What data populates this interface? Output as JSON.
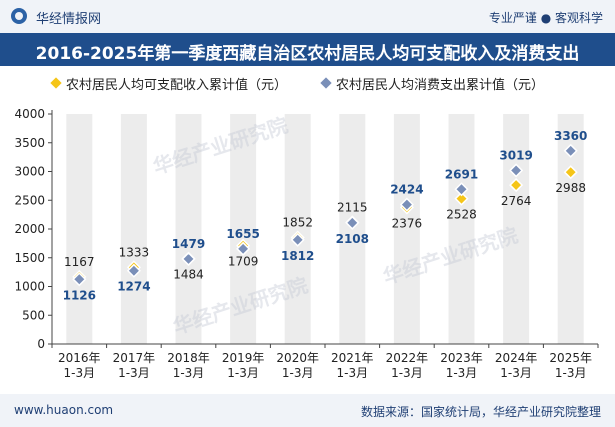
{
  "header": {
    "brand": "华经情报网",
    "tagline": "专业严谨 ● 客观科学",
    "title": "2016-2025年第一季度西藏自治区农村居民人均可支配收入及消费支出"
  },
  "footer": {
    "site": "www.huaon.com",
    "source": "数据来源：国家统计局，华经产业研究院整理"
  },
  "watermark": "华经产业研究院",
  "colors": {
    "income": "#f5c518",
    "consumption": "#7a8fb8",
    "bar": "#ececec",
    "title_bg": "#1f4e8c",
    "label_blue": "#1f4e8c"
  },
  "chart_data": {
    "type": "scatter",
    "categories": [
      "2016年\n1-3月",
      "2017年\n1-3月",
      "2018年\n1-3月",
      "2019年\n1-3月",
      "2020年\n1-3月",
      "2021年\n1-3月",
      "2022年\n1-3月",
      "2023年\n1-3月",
      "2024年\n1-3月",
      "2025年\n1-3月"
    ],
    "series": [
      {
        "name": "农村居民人均可支配收入累计值（元）",
        "values": [
          1167,
          1333,
          1484,
          1709,
          1852,
          2115,
          2376,
          2528,
          2764,
          2988
        ]
      },
      {
        "name": "农村居民人均消费支出累计值（元）",
        "values": [
          1126,
          1274,
          1479,
          1655,
          1812,
          2108,
          2424,
          2691,
          3019,
          3360
        ]
      }
    ],
    "ylim": [
      0,
      4000
    ],
    "yticks": [
      0,
      500,
      1000,
      1500,
      2000,
      2500,
      3000,
      3500,
      4000
    ],
    "label_positions": {
      "income": [
        "above",
        "above",
        "below",
        "below",
        "above",
        "above",
        "below",
        "below",
        "below",
        "below"
      ],
      "consumption": [
        "below",
        "below",
        "above",
        "above",
        "below",
        "below",
        "above",
        "above",
        "above",
        "above"
      ]
    }
  }
}
